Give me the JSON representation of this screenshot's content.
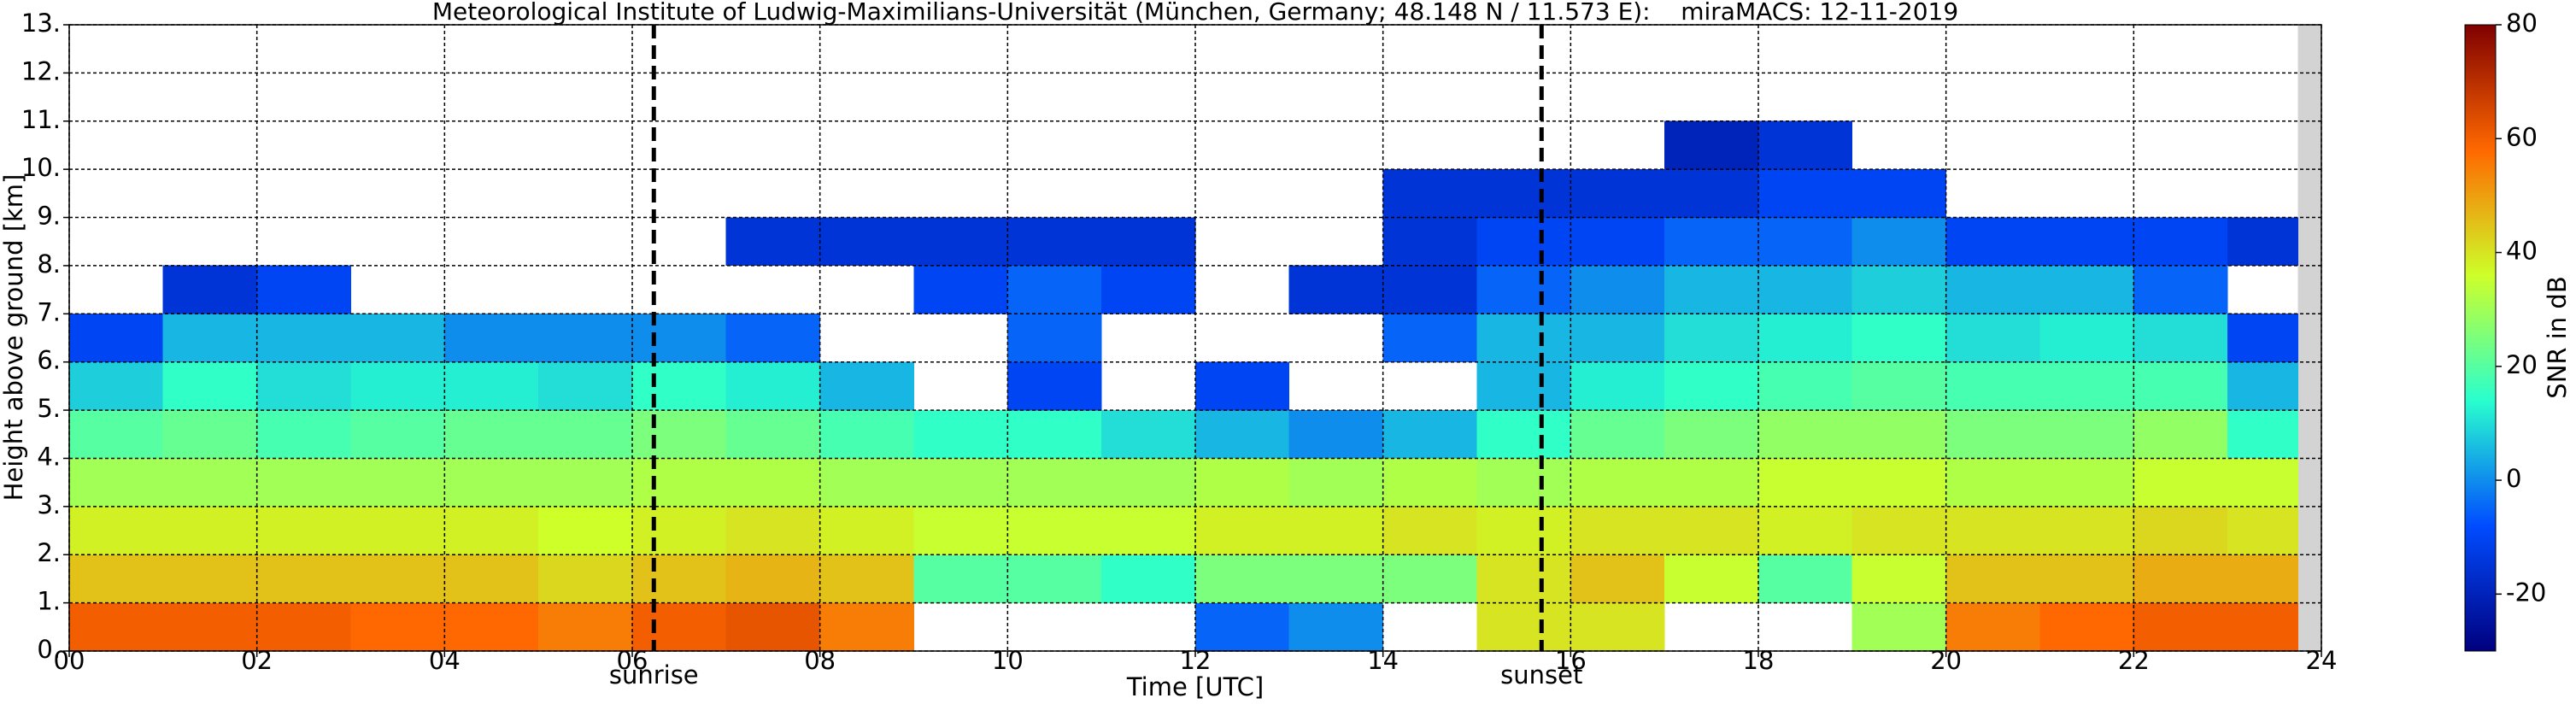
{
  "chart_data": {
    "type": "heatmap",
    "title": "Meteorological Institute of Ludwig-Maximilians-Universität (München, Germany; 48.148 N / 11.573 E):    miraMACS: 12-11-2019",
    "x_label": "Time [UTC]",
    "y_label": "Height above ground [km]",
    "colorbar_label": "SNR in dB",
    "x": [
      0,
      1,
      2,
      3,
      4,
      5,
      6,
      7,
      8,
      9,
      10,
      11,
      12,
      13,
      14,
      15,
      16,
      17,
      18,
      19,
      20,
      21,
      22,
      23,
      23.75
    ],
    "y": [
      0,
      1,
      2,
      3,
      4,
      5,
      6,
      7,
      8,
      9,
      10,
      11,
      12,
      13
    ],
    "values": [
      [
        60,
        60,
        60,
        58,
        58,
        55,
        60,
        62,
        55,
        null,
        null,
        null,
        -5,
        0,
        null,
        40,
        40,
        null,
        null,
        30,
        55,
        58,
        60,
        60
      ],
      [
        45,
        45,
        45,
        45,
        45,
        42,
        45,
        47,
        45,
        20,
        20,
        15,
        25,
        25,
        25,
        40,
        45,
        35,
        20,
        35,
        45,
        45,
        48,
        48
      ],
      [
        38,
        38,
        38,
        38,
        38,
        36,
        38,
        40,
        38,
        35,
        35,
        35,
        38,
        38,
        40,
        38,
        40,
        40,
        38,
        40,
        40,
        40,
        42,
        40
      ],
      [
        30,
        30,
        30,
        30,
        30,
        30,
        32,
        32,
        30,
        30,
        30,
        30,
        32,
        30,
        32,
        30,
        32,
        32,
        35,
        35,
        32,
        32,
        35,
        35
      ],
      [
        20,
        22,
        18,
        20,
        22,
        22,
        25,
        22,
        18,
        15,
        15,
        10,
        5,
        0,
        5,
        15,
        22,
        25,
        28,
        28,
        25,
        25,
        28,
        15
      ],
      [
        8,
        15,
        10,
        12,
        12,
        10,
        15,
        12,
        5,
        null,
        -10,
        null,
        -10,
        null,
        null,
        5,
        12,
        15,
        18,
        20,
        18,
        18,
        18,
        5
      ],
      [
        -10,
        5,
        5,
        5,
        0,
        0,
        0,
        -5,
        null,
        null,
        -5,
        null,
        null,
        null,
        -5,
        5,
        5,
        10,
        12,
        15,
        10,
        12,
        10,
        -10
      ],
      [
        null,
        -15,
        -10,
        null,
        null,
        null,
        null,
        null,
        null,
        -10,
        -5,
        -10,
        null,
        -15,
        -15,
        -5,
        0,
        5,
        5,
        8,
        5,
        5,
        -5,
        null
      ],
      [
        null,
        null,
        null,
        null,
        null,
        null,
        null,
        -15,
        -15,
        -15,
        -15,
        -15,
        null,
        null,
        -15,
        -10,
        -10,
        -5,
        -5,
        0,
        -10,
        -10,
        -10,
        -15
      ],
      [
        null,
        null,
        null,
        null,
        null,
        null,
        null,
        null,
        null,
        null,
        null,
        null,
        null,
        null,
        -15,
        -15,
        -15,
        -15,
        -10,
        -10,
        null,
        null,
        null,
        null
      ],
      [
        null,
        null,
        null,
        null,
        null,
        null,
        null,
        null,
        null,
        null,
        null,
        null,
        null,
        null,
        null,
        null,
        null,
        -20,
        -15,
        null,
        null,
        null,
        null,
        null
      ],
      [
        null,
        null,
        null,
        null,
        null,
        null,
        null,
        null,
        null,
        null,
        null,
        null,
        null,
        null,
        null,
        null,
        null,
        null,
        null,
        null,
        null,
        null,
        null,
        null
      ],
      [
        null,
        null,
        null,
        null,
        null,
        null,
        null,
        null,
        null,
        null,
        null,
        null,
        null,
        null,
        null,
        null,
        null,
        null,
        null,
        null,
        null,
        null,
        null,
        null
      ]
    ],
    "xlim": [
      0,
      24
    ],
    "ylim": [
      0,
      13
    ],
    "xticks": [
      {
        "value": 0,
        "label": "00"
      },
      {
        "value": 2,
        "label": "02"
      },
      {
        "value": 4,
        "label": "04"
      },
      {
        "value": 6,
        "label": "06"
      },
      {
        "value": 8,
        "label": "08"
      },
      {
        "value": 10,
        "label": "10"
      },
      {
        "value": 12,
        "label": "12"
      },
      {
        "value": 14,
        "label": "14"
      },
      {
        "value": 16,
        "label": "16"
      },
      {
        "value": 18,
        "label": "18"
      },
      {
        "value": 20,
        "label": "20"
      },
      {
        "value": 22,
        "label": "22"
      },
      {
        "value": 24,
        "label": "24"
      }
    ],
    "yticks": [
      {
        "value": 0,
        "label": "0."
      },
      {
        "value": 1,
        "label": "1."
      },
      {
        "value": 2,
        "label": "2."
      },
      {
        "value": 3,
        "label": "3."
      },
      {
        "value": 4,
        "label": "4."
      },
      {
        "value": 5,
        "label": "5."
      },
      {
        "value": 6,
        "label": "6."
      },
      {
        "value": 7,
        "label": "7."
      },
      {
        "value": 8,
        "label": "8."
      },
      {
        "value": 9,
        "label": "9."
      },
      {
        "value": 10,
        "label": "10."
      },
      {
        "value": 11,
        "label": "11."
      },
      {
        "value": 12,
        "label": "12."
      },
      {
        "value": 13,
        "label": "13."
      }
    ],
    "clim": [
      -30,
      80
    ],
    "cticks": [
      -20,
      0,
      20,
      40,
      60,
      80
    ],
    "colormap": [
      "#00007f",
      "#004cff",
      "#29ffce",
      "#ceff29",
      "#ff6800",
      "#7f0000"
    ],
    "grid": true,
    "vlines": [
      {
        "x": 6.23,
        "label": "sunrise"
      },
      {
        "x": 15.69,
        "label": "sunset"
      }
    ]
  }
}
